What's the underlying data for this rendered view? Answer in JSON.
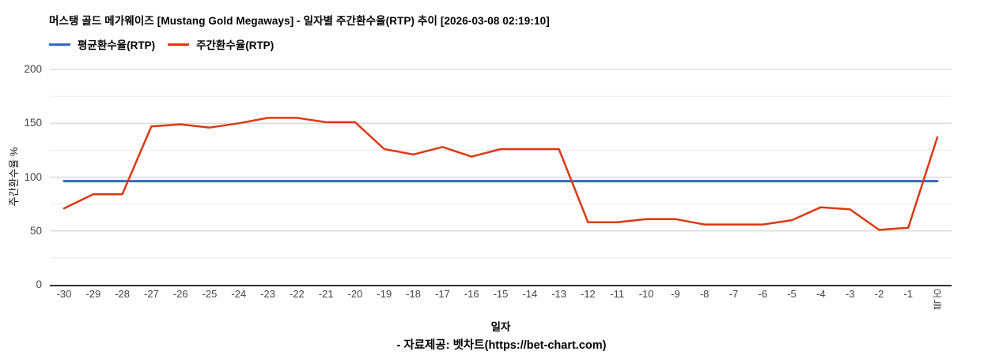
{
  "header": {
    "title": "머스탱 골드 메가웨이즈 [Mustang Gold Megaways] - 일자별 주간환수율(RTP) 추이 [2026-03-08 02:19:10]"
  },
  "legend": {
    "items": [
      {
        "label": "평균환수율(RTP)",
        "color": "#3366cc"
      },
      {
        "label": "주간환수율(RTP)",
        "color": "#dc3912"
      }
    ]
  },
  "chart_data": {
    "type": "line",
    "title": "머스탱 골드 메가웨이즈 [Mustang Gold Megaways] - 일자별 주간환수율(RTP) 추이 [2026-03-08 02:19:10]",
    "xlabel": "일자",
    "ylabel": "주간환수율 %",
    "ylim": [
      0,
      200
    ],
    "yticks": [
      0,
      50,
      100,
      150,
      200
    ],
    "minor_gridlines": [
      25,
      75,
      125,
      175
    ],
    "grid": true,
    "legend_position": "top-left",
    "categories": [
      "-30",
      "-29",
      "-28",
      "-27",
      "-26",
      "-25",
      "-24",
      "-23",
      "-22",
      "-21",
      "-20",
      "-19",
      "-18",
      "-17",
      "-16",
      "-15",
      "-14",
      "-13",
      "-12",
      "-11",
      "-10",
      "-9",
      "-8",
      "-7",
      "-6",
      "-5",
      "-4",
      "-3",
      "-2",
      "-1",
      "오늘"
    ],
    "series": [
      {
        "name": "평균환수율(RTP)",
        "color": "#3366cc",
        "values": [
          96.3,
          96.3,
          96.3,
          96.3,
          96.3,
          96.3,
          96.3,
          96.3,
          96.3,
          96.3,
          96.3,
          96.3,
          96.3,
          96.3,
          96.3,
          96.3,
          96.3,
          96.3,
          96.3,
          96.3,
          96.3,
          96.3,
          96.3,
          96.3,
          96.3,
          96.3,
          96.3,
          96.3,
          96.3,
          96.3,
          96.3
        ]
      },
      {
        "name": "주간환수율(RTP)",
        "color": "#dc3912",
        "values": [
          71,
          84,
          84,
          147,
          149,
          146,
          150,
          155,
          155,
          151,
          151,
          126,
          121,
          128,
          119,
          126,
          126,
          126,
          58,
          58,
          61,
          61,
          56,
          56,
          56,
          60,
          72,
          70,
          51,
          53,
          137
        ]
      }
    ],
    "colors": {
      "major_gridline": "#cccccc",
      "minor_gridline": "#ebebeb",
      "baseline": "#333333",
      "tick_text": "#444444"
    }
  },
  "footer": {
    "source": "- 자료제공: 벳차트(https://bet-chart.com)"
  }
}
